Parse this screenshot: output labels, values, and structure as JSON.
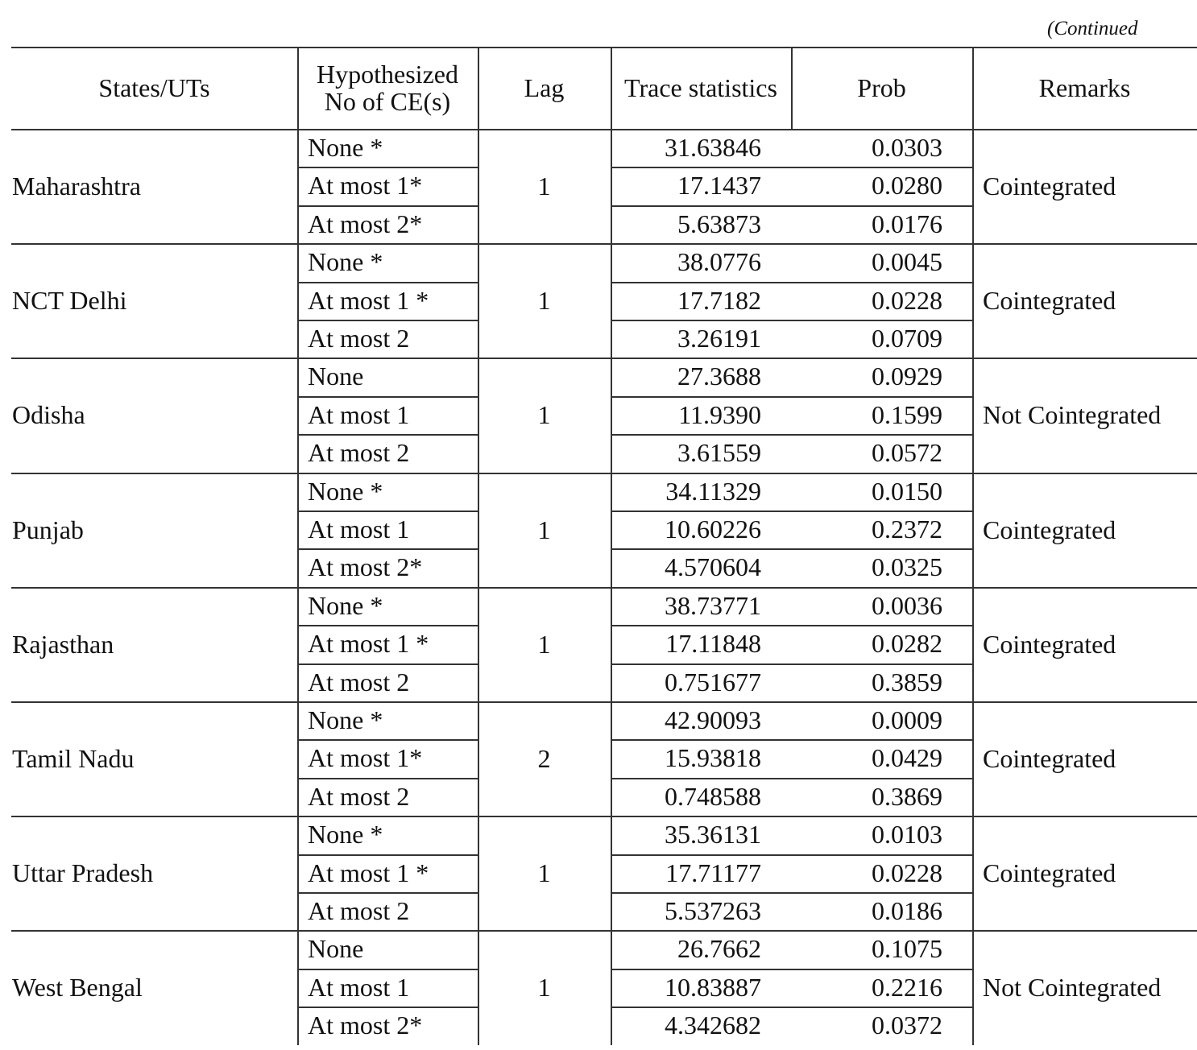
{
  "note": "(Continued",
  "table": {
    "header": [
      "States/UTs",
      "Hypothesized No of CE(s)",
      "Lag",
      "Trace statistics",
      "Prob",
      "Remarks"
    ],
    "groups": [
      {
        "state": "Maharashtra",
        "lag": "1",
        "remarks": "Cointegrated",
        "rows": [
          [
            "None *",
            "31.63846",
            "0.0303"
          ],
          [
            "At most 1*",
            "17.1437",
            "0.0280"
          ],
          [
            "At most 2*",
            "5.63873",
            "0.0176"
          ]
        ]
      },
      {
        "state": "NCT Delhi",
        "lag": "1",
        "remarks": "Cointegrated",
        "rows": [
          [
            "None *",
            "38.0776",
            "0.0045"
          ],
          [
            "At most 1 *",
            "17.7182",
            "0.0228"
          ],
          [
            "At most 2",
            "3.26191",
            "0.0709"
          ]
        ]
      },
      {
        "state": "Odisha",
        "lag": "1",
        "remarks": "Not Cointegrated",
        "rows": [
          [
            "None",
            "27.3688",
            "0.0929"
          ],
          [
            "At most 1",
            "11.9390",
            "0.1599"
          ],
          [
            "At most 2",
            "3.61559",
            "0.0572"
          ]
        ]
      },
      {
        "state": "Punjab",
        "lag": "1",
        "remarks": "Cointegrated",
        "rows": [
          [
            "None *",
            "34.11329",
            "0.0150"
          ],
          [
            "At most 1",
            "10.60226",
            "0.2372"
          ],
          [
            "At most 2*",
            "4.570604",
            "0.0325"
          ]
        ]
      },
      {
        "state": "Rajasthan",
        "lag": "1",
        "remarks": "Cointegrated",
        "rows": [
          [
            "None *",
            "38.73771",
            "0.0036"
          ],
          [
            "At most 1 *",
            "17.11848",
            "0.0282"
          ],
          [
            "At most 2",
            "0.751677",
            "0.3859"
          ]
        ]
      },
      {
        "state": "Tamil Nadu",
        "lag": "2",
        "remarks": "Cointegrated",
        "rows": [
          [
            "None *",
            "42.90093",
            "0.0009"
          ],
          [
            "At most 1*",
            "15.93818",
            "0.0429"
          ],
          [
            "At most 2",
            "0.748588",
            "0.3869"
          ]
        ]
      },
      {
        "state": "Uttar Pradesh",
        "lag": "1",
        "remarks": "Cointegrated",
        "rows": [
          [
            "None *",
            "35.36131",
            "0.0103"
          ],
          [
            "At most 1 *",
            "17.71177",
            "0.0228"
          ],
          [
            "At most 2",
            "5.537263",
            "0.0186"
          ]
        ]
      },
      {
        "state": "West Bengal",
        "lag": "1",
        "remarks": "Not Cointegrated",
        "rows": [
          [
            "None",
            "26.7662",
            "0.1075"
          ],
          [
            "At most 1",
            "10.83887",
            "0.2216"
          ],
          [
            "At most 2*",
            "4.342682",
            "0.0372"
          ]
        ]
      }
    ]
  }
}
